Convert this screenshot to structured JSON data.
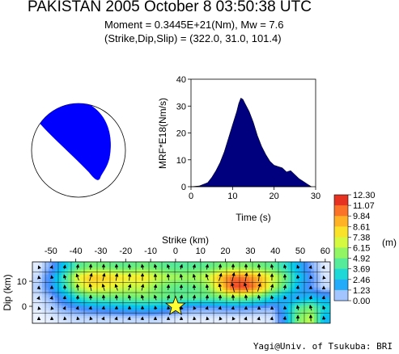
{
  "header": {
    "title": "PAKISTAN 2005 October 8 03:50:38 UTC",
    "moment": "Moment = 0.3445E+21(Nm), Mw = 7.6",
    "strike_dip_slip": "(Strike,Dip,Slip) = (322.0, 31.0,  101.4)"
  },
  "credit": "Yagi@Univ. of Tsukuba: BRI",
  "colors": {
    "beachball_fill": "#0000ff",
    "mrf_fill": "#00007f",
    "star": "#ffff33"
  },
  "chart_data": [
    {
      "type": "area",
      "name": "moment-rate-function",
      "xlabel": "Time (s)",
      "ylabel": "MRF*E18(Nm/s)",
      "xlim": [
        0,
        30
      ],
      "ylim": [
        0,
        40
      ],
      "xticks": [
        "0",
        "10",
        "20",
        "30"
      ],
      "yticks": [
        "0",
        "10",
        "20",
        "30",
        "40"
      ],
      "x": [
        0,
        2,
        4,
        5,
        6,
        7,
        8,
        9,
        10,
        11,
        11.5,
        12,
        12.5,
        13,
        14,
        15,
        16,
        17,
        18,
        19,
        20,
        21,
        22,
        23,
        24,
        25,
        26,
        27,
        28,
        29
      ],
      "y": [
        0,
        0.3,
        1.5,
        3.5,
        6,
        9,
        13,
        18,
        23,
        28,
        31,
        33,
        32.5,
        31,
        28,
        24,
        19,
        15,
        12,
        9.5,
        8,
        7.5,
        7,
        5.5,
        6,
        4.5,
        3,
        2,
        1,
        0
      ]
    },
    {
      "type": "heatmap",
      "name": "slip-distribution",
      "xlabel": "Strike (km)",
      "ylabel": "Dip (km)",
      "xticks": [
        "-50",
        "-40",
        "-30",
        "-20",
        "-10",
        "0",
        "10",
        "20",
        "30",
        "40",
        "50",
        "60"
      ],
      "yticks": [
        "10",
        "0"
      ],
      "colorbar_unit": "(m)",
      "colorbar_labels": [
        "12.30",
        "11.07",
        "9.84",
        "8.61",
        "7.38",
        "6.15",
        "4.92",
        "3.69",
        "2.46",
        "1.23",
        "0.00"
      ],
      "max_slip": 12.3,
      "hypocenter": {
        "strike_km": 0,
        "dip_km": 0
      },
      "rows_top_to_bottom": [
        [
          0.2,
          1.0,
          2.6,
          4.3,
          5.0,
          4.9,
          4.6,
          4.6,
          4.9,
          4.7,
          4.4,
          4.3,
          4.4,
          4.5,
          5.0,
          5.3,
          5.2,
          4.9,
          4.5,
          3.5,
          2.1,
          0.9,
          0.2
        ],
        [
          0.4,
          1.6,
          3.9,
          7.2,
          8.7,
          8.5,
          8.0,
          7.6,
          7.9,
          6.8,
          6.1,
          5.8,
          5.9,
          6.6,
          8.9,
          10.6,
          10.2,
          9.0,
          7.1,
          5.0,
          2.6,
          1.2,
          0.3
        ],
        [
          0.5,
          1.5,
          3.4,
          6.2,
          7.6,
          7.4,
          6.9,
          6.4,
          6.5,
          5.4,
          4.7,
          4.4,
          4.6,
          5.3,
          8.1,
          11.2,
          11.3,
          9.6,
          6.4,
          4.2,
          2.1,
          1.1,
          0.4
        ],
        [
          0.3,
          0.8,
          1.7,
          3.2,
          4.3,
          4.6,
          4.7,
          4.8,
          5.0,
          4.9,
          4.7,
          4.6,
          4.6,
          4.4,
          4.7,
          5.3,
          5.1,
          4.3,
          2.9,
          1.9,
          1.7,
          2.3,
          1.8
        ],
        [
          0.2,
          0.5,
          0.9,
          1.2,
          1.5,
          1.7,
          1.9,
          2.1,
          2.2,
          2.1,
          1.7,
          1.3,
          1.0,
          1.0,
          1.1,
          1.2,
          1.1,
          0.9,
          0.8,
          1.9,
          4.3,
          5.0,
          3.0
        ],
        [
          0.1,
          0.2,
          0.3,
          0.4,
          0.4,
          0.4,
          0.4,
          0.4,
          0.4,
          0.4,
          0.3,
          0.2,
          0.2,
          0.2,
          0.2,
          0.2,
          0.2,
          0.2,
          0.3,
          1.6,
          5.1,
          6.4,
          2.2
        ]
      ]
    }
  ]
}
